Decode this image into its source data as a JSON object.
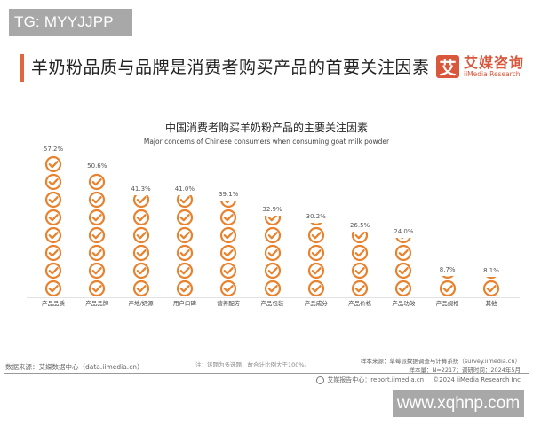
{
  "watermark_top": "TG: MYYJJPP",
  "watermark_bottom": "www.xqhnp.com",
  "headline": "羊奶粉品质与品牌是消费者购买产品的首要关注因素",
  "logo": {
    "mark": "艾",
    "name_cn": "艾媒咨询",
    "name_en": "iiMedia Research",
    "color": "#d9573b"
  },
  "colors": {
    "accent_bar": "#e0663c",
    "icon": "#e8822e"
  },
  "chart_data": {
    "type": "bar",
    "style": "pictograph-stacked-check-icons",
    "title": "中国消费者购买羊奶粉产品的主要关注因素",
    "subtitle": "Major concerns of Chinese consumers when consuming goat milk powder",
    "xlabel": "",
    "ylabel": "",
    "unit": "%",
    "ylim": [
      0,
      60
    ],
    "grid": false,
    "legend": null,
    "categories": [
      "产品品质",
      "产品品牌",
      "产地/奶源",
      "用户口碑",
      "营养配方",
      "产品包装",
      "产品成分",
      "产品价格",
      "产品功效",
      "产品规格",
      "其他"
    ],
    "values": [
      57.2,
      50.6,
      41.3,
      41.0,
      39.1,
      32.9,
      30.2,
      26.5,
      24.0,
      8.7,
      8.1
    ],
    "value_labels": [
      "57.2%",
      "50.6%",
      "41.3%",
      "41.0%",
      "39.1%",
      "32.9%",
      "30.2%",
      "26.5%",
      "24.0%",
      "8.7%",
      "8.1%"
    ]
  },
  "footer": {
    "source": "数据来源：艾媒数据中心（data.iimedia.cn）",
    "note": "注：该题为多选题，故合计比例大于100%。",
    "sample_source": "样本来源：草莓派数据调查与计算系统（survey.iimedia.cn）",
    "sample_size": "样本量：N=2217；调研时间：2024年5月",
    "report_center": "艾媒报告中心：report.iimedia.cn",
    "copyright": "©2024  iiMedia Research  Inc"
  }
}
